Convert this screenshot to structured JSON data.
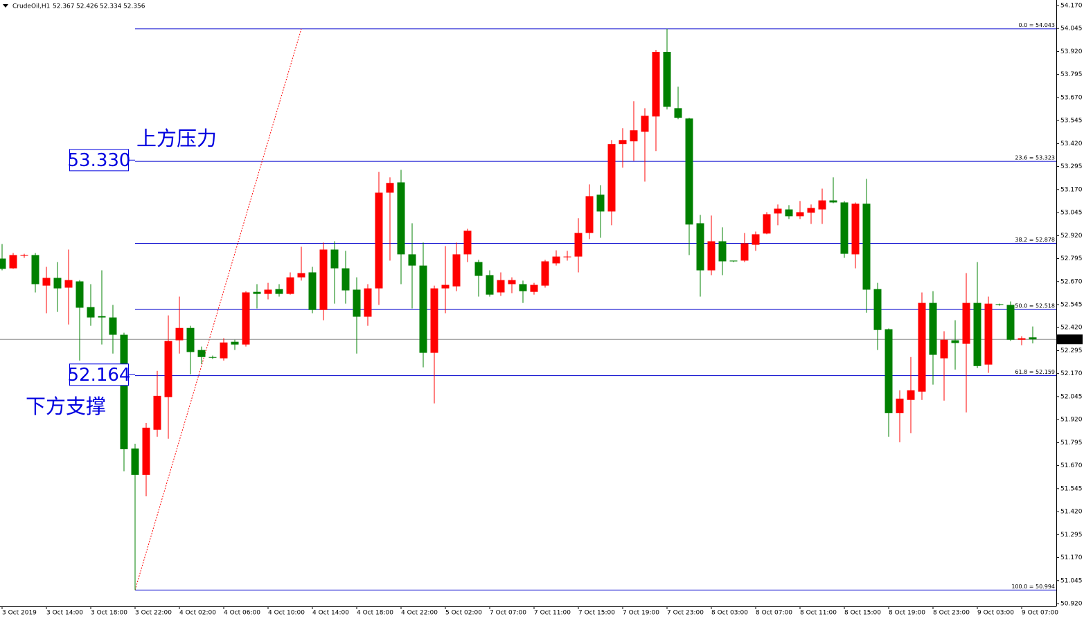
{
  "chart_data": {
    "type": "candlestick",
    "title": "CrudeOil,H1",
    "up_color": "#ff0000",
    "down_color": "#008000",
    "fib_color": "#0000cd",
    "price_line_color": "#8c8c8c",
    "ylim": [
      50.905,
      54.2
    ],
    "yticks": [
      {
        "value": 54.17,
        "label": "54.170"
      },
      54.045,
      {
        "value": 53.92,
        "label": "53.920"
      },
      53.795,
      {
        "value": 53.67,
        "label": "53.670"
      },
      53.545,
      {
        "value": 53.42,
        "label": "53.420"
      },
      53.295,
      {
        "value": 53.17,
        "label": "53.170"
      },
      53.045,
      {
        "value": 52.92,
        "label": "52.920"
      },
      52.795,
      {
        "value": 52.67,
        "label": "52.670"
      },
      52.545,
      {
        "value": 52.42,
        "label": "52.420"
      },
      52.295,
      {
        "value": 52.17,
        "label": "52.170"
      },
      52.045,
      {
        "value": 51.92,
        "label": "51.920"
      },
      51.795,
      {
        "value": 51.67,
        "label": "51.670"
      },
      51.545,
      {
        "value": 51.42,
        "label": "51.420"
      },
      51.295,
      {
        "value": 51.17,
        "label": "51.170"
      },
      51.045,
      {
        "value": 50.92,
        "label": "50.920"
      }
    ],
    "categories": [
      "3 Oct 2019",
      null,
      null,
      null,
      "3 Oct 14:00",
      null,
      null,
      null,
      "3 Oct 18:00",
      null,
      null,
      null,
      "3 Oct 22:00",
      null,
      null,
      null,
      "4 Oct 02:00",
      null,
      null,
      null,
      "4 Oct 06:00",
      null,
      null,
      null,
      "4 Oct 10:00",
      null,
      null,
      null,
      "4 Oct 14:00",
      null,
      null,
      null,
      "4 Oct 18:00",
      null,
      null,
      null,
      "4 Oct 22:00",
      null,
      null,
      null,
      "5 Oct 02:00",
      null,
      null,
      null,
      "7 Oct 07:00",
      null,
      null,
      null,
      "7 Oct 11:00",
      null,
      null,
      null,
      "7 Oct 15:00",
      null,
      null,
      null,
      "7 Oct 19:00",
      null,
      null,
      null,
      "7 Oct 23:00",
      null,
      null,
      null,
      "8 Oct 03:00",
      null,
      null,
      null,
      "8 Oct 07:00",
      null,
      null,
      null,
      "8 Oct 11:00",
      null,
      null,
      null,
      "8 Oct 15:00",
      null,
      null,
      null,
      "8 Oct 19:00",
      null,
      null,
      null,
      "8 Oct 23:00",
      null,
      null,
      null,
      "9 Oct 03:00",
      null,
      null,
      null,
      "9 Oct 07:00",
      null
    ],
    "open": [
      52.795,
      52.742,
      52.81,
      52.814,
      52.648,
      52.69,
      52.637,
      52.671,
      52.531,
      52.482,
      52.475,
      52.381,
      51.763,
      51.62,
      51.865,
      52.042,
      52.351,
      52.418,
      52.298,
      52.26,
      52.253,
      52.343,
      52.328,
      52.614,
      52.603,
      52.629,
      52.603,
      52.693,
      52.72,
      52.516,
      52.844,
      52.742,
      52.626,
      52.479,
      52.633,
      53.153,
      53.209,
      52.818,
      52.757,
      52.283,
      52.633,
      52.644,
      52.818,
      52.776,
      52.705,
      52.611,
      52.656,
      52.656,
      52.614,
      52.648,
      52.769,
      52.803,
      52.806,
      52.934,
      53.142,
      53.051,
      53.417,
      53.432,
      53.484,
      53.567,
      53.918,
      53.612,
      53.556,
      52.987,
      52.731,
      52.889,
      52.784,
      52.784,
      52.87,
      52.931,
      53.04,
      53.062,
      53.025,
      53.044,
      53.062,
      53.111,
      53.1,
      52.818,
      53.093,
      52.629,
      52.411,
      51.955,
      52.027,
      52.072,
      52.554,
      52.253,
      52.351,
      52.332,
      52.554,
      52.219,
      52.547,
      52.543,
      52.354,
      52.367
    ],
    "high": [
      52.874,
      52.825,
      52.821,
      52.825,
      52.75,
      52.776,
      52.844,
      52.678,
      52.656,
      52.731,
      52.543,
      52.392,
      51.789,
      51.902,
      52.185,
      52.486,
      52.588,
      52.43,
      52.317,
      52.268,
      52.362,
      52.354,
      52.618,
      52.656,
      52.663,
      52.656,
      52.72,
      52.859,
      52.75,
      52.882,
      52.889,
      52.837,
      52.693,
      52.656,
      53.266,
      53.236,
      53.277,
      52.987,
      52.882,
      52.648,
      52.863,
      52.882,
      52.957,
      52.788,
      52.731,
      52.72,
      52.693,
      52.675,
      52.663,
      52.788,
      52.84,
      52.837,
      53.014,
      53.198,
      53.194,
      53.439,
      53.503,
      53.65,
      53.612,
      53.929,
      54.043,
      53.729,
      53.56,
      53.032,
      53.029,
      52.965,
      52.784,
      52.934,
      52.942,
      53.047,
      53.089,
      53.085,
      53.108,
      53.089,
      53.175,
      53.236,
      53.108,
      53.1,
      53.228,
      52.663,
      52.415,
      52.079,
      52.26,
      52.611,
      52.618,
      52.4,
      52.46,
      52.716,
      52.776,
      52.588,
      52.55,
      52.562,
      52.373,
      52.426
    ],
    "low": [
      52.731,
      52.739,
      52.799,
      52.611,
      52.498,
      52.505,
      52.437,
      52.241,
      52.43,
      52.328,
      52.279,
      51.639,
      50.994,
      51.503,
      51.827,
      51.816,
      52.279,
      52.166,
      52.223,
      52.249,
      52.241,
      52.298,
      52.317,
      52.524,
      52.573,
      52.588,
      52.599,
      52.675,
      52.498,
      52.46,
      52.55,
      52.55,
      52.279,
      52.43,
      52.543,
      52.784,
      52.656,
      52.524,
      52.204,
      52.008,
      52.498,
      52.618,
      52.776,
      52.588,
      52.588,
      52.592,
      52.607,
      52.554,
      52.599,
      52.637,
      52.757,
      52.784,
      52.72,
      52.901,
      52.908,
      52.976,
      53.289,
      53.326,
      53.213,
      53.379,
      53.605,
      53.552,
      52.814,
      52.588,
      52.705,
      52.705,
      52.776,
      52.776,
      52.837,
      52.927,
      52.976,
      53.01,
      53.01,
      52.983,
      52.983,
      53.096,
      52.799,
      52.742,
      52.501,
      52.298,
      51.827,
      51.797,
      51.846,
      52.027,
      52.11,
      52.023,
      52.192,
      51.959,
      52.2,
      52.174,
      52.539,
      52.347,
      52.324,
      52.334
    ],
    "close": [
      52.739,
      52.814,
      52.814,
      52.656,
      52.69,
      52.633,
      52.678,
      52.528,
      52.475,
      52.475,
      52.381,
      51.759,
      51.62,
      51.876,
      52.049,
      52.347,
      52.418,
      52.287,
      52.26,
      52.257,
      52.339,
      52.328,
      52.611,
      52.603,
      52.626,
      52.603,
      52.693,
      52.716,
      52.516,
      52.844,
      52.742,
      52.622,
      52.479,
      52.633,
      53.153,
      53.206,
      52.818,
      52.757,
      52.283,
      52.633,
      52.652,
      52.818,
      52.946,
      52.701,
      52.599,
      52.678,
      52.678,
      52.618,
      52.652,
      52.78,
      52.806,
      52.806,
      52.934,
      53.134,
      53.051,
      53.417,
      53.439,
      53.492,
      53.571,
      53.918,
      53.62,
      53.56,
      52.98,
      52.731,
      52.889,
      52.78,
      52.78,
      52.878,
      52.927,
      53.036,
      53.066,
      53.025,
      53.047,
      53.07,
      53.111,
      53.1,
      52.821,
      53.093,
      52.626,
      52.407,
      51.955,
      52.034,
      52.079,
      52.554,
      52.272,
      52.354,
      52.336,
      52.554,
      52.211,
      52.55,
      52.543,
      52.354,
      52.362,
      52.356
    ],
    "fib_levels": [
      {
        "label": "0.0 = 54.043",
        "value": 54.043
      },
      {
        "label": "23.6 = 53.323",
        "value": 53.323
      },
      {
        "label": "38.2 = 52.878",
        "value": 52.878
      },
      {
        "label": "50.0 = 52.518",
        "value": 52.518
      },
      {
        "label": "61.8 = 52.159",
        "value": 52.159
      },
      {
        "label": "100.0 = 50.994",
        "value": 50.994
      }
    ],
    "annotations": [
      {
        "label": "53.330",
        "value": 53.33,
        "text": "上方压力"
      },
      {
        "label": "52.164",
        "value": 52.164,
        "text": "下方支撑"
      }
    ]
  }
}
